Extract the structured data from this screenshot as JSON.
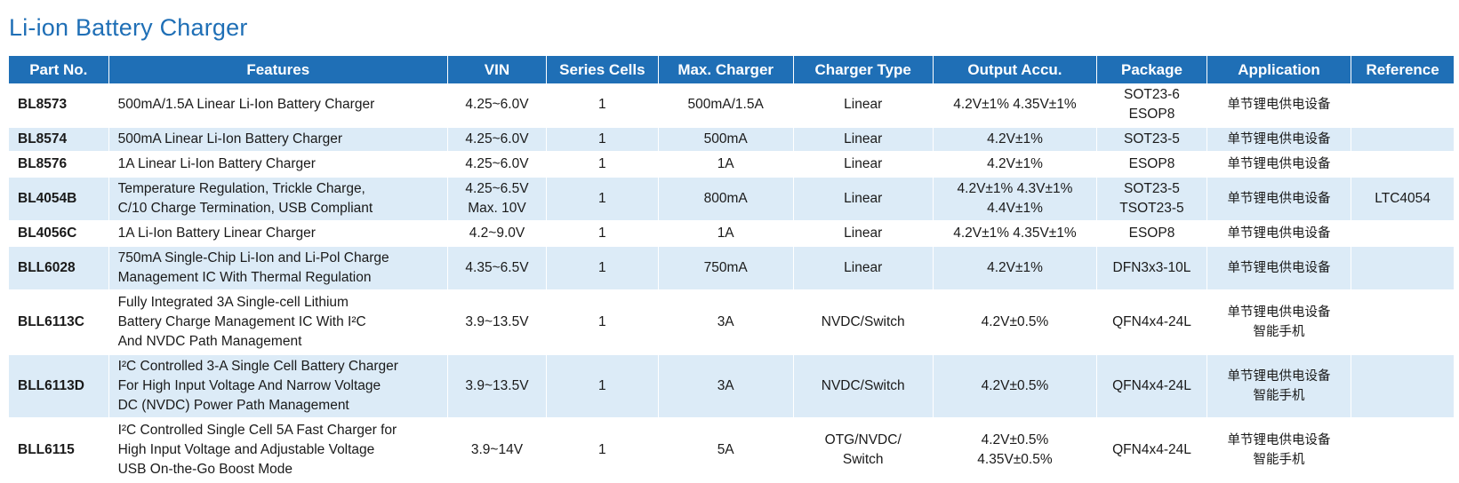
{
  "title": "Li-ion Battery Charger",
  "columns": [
    "Part No.",
    "Features",
    "VIN",
    "Series Cells",
    "Max. Charger",
    "Charger Type",
    "Output Accu.",
    "Package",
    "Application",
    "Reference"
  ],
  "rows": [
    {
      "part": "BL8573",
      "features": "500mA/1.5A Linear Li-Ion Battery Charger",
      "vin": "4.25~6.0V",
      "cells": "1",
      "max": "500mA/1.5A",
      "type": "Linear",
      "accu": "4.2V±1% 4.35V±1%",
      "package": "SOT23-6\nESOP8",
      "application": "单节锂电供电设备",
      "reference": ""
    },
    {
      "part": "BL8574",
      "features": "500mA Linear Li-Ion Battery Charger",
      "vin": "4.25~6.0V",
      "cells": "1",
      "max": "500mA",
      "type": "Linear",
      "accu": "4.2V±1%",
      "package": "SOT23-5",
      "application": "单节锂电供电设备",
      "reference": ""
    },
    {
      "part": "BL8576",
      "features": "1A Linear Li-Ion Battery Charger",
      "vin": "4.25~6.0V",
      "cells": "1",
      "max": "1A",
      "type": "Linear",
      "accu": "4.2V±1%",
      "package": "ESOP8",
      "application": "单节锂电供电设备",
      "reference": ""
    },
    {
      "part": "BL4054B",
      "features": "Temperature Regulation, Trickle Charge,\nC/10 Charge Termination, USB Compliant",
      "vin": "4.25~6.5V\nMax. 10V",
      "cells": "1",
      "max": "800mA",
      "type": "Linear",
      "accu": "4.2V±1% 4.3V±1%\n4.4V±1%",
      "package": "SOT23-5\nTSOT23-5",
      "application": "单节锂电供电设备",
      "reference": "LTC4054"
    },
    {
      "part": "BL4056C",
      "features": "1A Li-Ion Battery Linear Charger",
      "vin": "4.2~9.0V",
      "cells": "1",
      "max": "1A",
      "type": "Linear",
      "accu": "4.2V±1% 4.35V±1%",
      "package": "ESOP8",
      "application": "单节锂电供电设备",
      "reference": ""
    },
    {
      "part": "BLL6028",
      "features": "750mA Single-Chip Li-Ion and Li-Pol Charge\nManagement IC  With Thermal Regulation",
      "vin": "4.35~6.5V",
      "cells": "1",
      "max": "750mA",
      "type": "Linear",
      "accu": "4.2V±1%",
      "package": "DFN3x3-10L",
      "application": "单节锂电供电设备",
      "reference": ""
    },
    {
      "part": "BLL6113C",
      "features": "Fully Integrated 3A Single-cell Lithium\nBattery Charge Management IC With I²C\nAnd NVDC Path Management",
      "vin": "3.9~13.5V",
      "cells": "1",
      "max": "3A",
      "type": "NVDC/Switch",
      "accu": "4.2V±0.5%",
      "package": "QFN4x4-24L",
      "application": "单节锂电供电设备\n智能手机",
      "reference": ""
    },
    {
      "part": "BLL6113D",
      "features": "I²C Controlled 3-A Single Cell Battery Charger\nFor High Input Voltage And Narrow Voltage\nDC (NVDC) Power Path Management",
      "vin": "3.9~13.5V",
      "cells": "1",
      "max": "3A",
      "type": "NVDC/Switch",
      "accu": "4.2V±0.5%",
      "package": "QFN4x4-24L",
      "application": "单节锂电供电设备\n智能手机",
      "reference": ""
    },
    {
      "part": "BLL6115",
      "features": "I²C Controlled Single Cell 5A Fast Charger for\nHigh Input Voltage and Adjustable Voltage\nUSB On-the-Go Boost Mode",
      "vin": "3.9~14V",
      "cells": "1",
      "max": "5A",
      "type": "OTG/NVDC/\nSwitch",
      "accu": "4.2V±0.5%\n4.35V±0.5%",
      "package": "QFN4x4-24L",
      "application": "单节锂电供电设备\n智能手机",
      "reference": ""
    }
  ]
}
